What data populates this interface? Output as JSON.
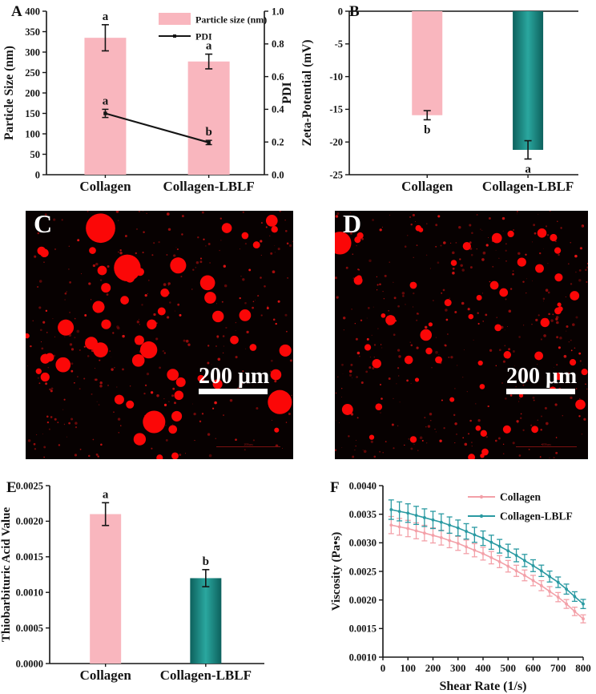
{
  "page": {
    "background": "#ffffff"
  },
  "panels": {
    "A": {
      "letter": "A"
    },
    "B": {
      "letter": "B"
    },
    "C": {
      "letter": "C",
      "scalebar_label": "200 μm",
      "embedded_scalebar_label": "200um"
    },
    "D": {
      "letter": "D",
      "scalebar_label": "200 μm",
      "embedded_scalebar_label": "200um"
    },
    "E": {
      "letter": "E"
    },
    "F": {
      "letter": "F"
    }
  },
  "colors": {
    "pink": "#f9b6be",
    "pink_line": "#f3a0a8",
    "teal_edge": "#0d615d",
    "teal_center": "#2aa79f",
    "teal_line": "#2a9aa2",
    "axis": "#151515",
    "droplet_red": "#fb0707",
    "micro_bg": "#070101"
  },
  "chart_data": [
    {
      "panel": "A",
      "type": "bar",
      "categories": [
        "Collagen",
        "Collagen-LBLF"
      ],
      "series": [
        {
          "name": "Particle size (nm)",
          "plot": "bar",
          "axis": "left",
          "values": [
            335,
            277
          ],
          "errors": [
            32,
            18
          ],
          "sig_labels": [
            "a",
            "a"
          ],
          "bar_colors": [
            "pink",
            "pink"
          ]
        },
        {
          "name": "PDI",
          "plot": "line",
          "axis": "right",
          "values": [
            0.375,
            0.197
          ],
          "errors": [
            0.025,
            0.013
          ],
          "sig_labels": [
            "a",
            "b"
          ]
        }
      ],
      "ylabel": "Particle Size (nm)",
      "ylabel_right": "PDI",
      "ylim": [
        0,
        400
      ],
      "ystep": 50,
      "ydecimals": 0,
      "ylim_right": [
        0.0,
        1.0
      ],
      "ystep_right": 0.2,
      "ydecimals_right": 1,
      "legend_position": "top-right"
    },
    {
      "panel": "B",
      "type": "bar",
      "categories": [
        "Collagen",
        "Collagen-LBLF"
      ],
      "series": [
        {
          "name": "Zeta-Potential",
          "plot": "bar",
          "axis": "left",
          "values": [
            -15.9,
            -21.2
          ],
          "errors": [
            0.7,
            1.4
          ],
          "sig_labels": [
            "b",
            "a"
          ],
          "bar_colors": [
            "pink",
            "teal"
          ]
        }
      ],
      "ylabel": "Zeta-Potential (mV)",
      "ylim": [
        -25,
        0
      ],
      "ystep": 5,
      "ydecimals": 0
    },
    {
      "panel": "E",
      "type": "bar",
      "categories": [
        "Collagen",
        "Collagen-LBLF"
      ],
      "series": [
        {
          "name": "Thiobarbituric Acid Value",
          "plot": "bar",
          "axis": "left",
          "values": [
            0.0021,
            0.0012
          ],
          "errors": [
            0.00016,
            0.00012
          ],
          "sig_labels": [
            "a",
            "b"
          ],
          "bar_colors": [
            "pink",
            "teal"
          ]
        }
      ],
      "ylabel": "Thiobarbituric Acid Value",
      "ylim": [
        0.0,
        0.0025
      ],
      "ystep": 0.0005,
      "ydecimals": 4
    },
    {
      "panel": "F",
      "type": "line",
      "x": [
        33,
        66,
        100,
        133,
        166,
        200,
        233,
        266,
        300,
        333,
        366,
        400,
        433,
        466,
        500,
        533,
        566,
        600,
        633,
        666,
        700,
        733,
        766,
        800
      ],
      "series": [
        {
          "name": "Collagen",
          "color": "pink_line",
          "values": [
            0.00331,
            0.00328,
            0.00325,
            0.00321,
            0.00317,
            0.00313,
            0.00309,
            0.00304,
            0.00299,
            0.00293,
            0.00287,
            0.00281,
            0.00274,
            0.00267,
            0.00259,
            0.00251,
            0.00243,
            0.00234,
            0.00225,
            0.00215,
            0.00205,
            0.00193,
            0.0018,
            0.00167
          ],
          "error_start": 0.00015,
          "error_end": 7e-05
        },
        {
          "name": "Collagen-LBLF",
          "color": "teal_line",
          "values": [
            0.00358,
            0.00355,
            0.00352,
            0.00348,
            0.00344,
            0.0034,
            0.00336,
            0.00331,
            0.00326,
            0.0032,
            0.00314,
            0.00308,
            0.00301,
            0.00294,
            0.00286,
            0.00278,
            0.00269,
            0.0026,
            0.00251,
            0.00241,
            0.00231,
            0.00219,
            0.00206,
            0.00193
          ],
          "error_start": 0.00017,
          "error_end": 8e-05
        }
      ],
      "xlabel": "Shear Rate (1/s)",
      "ylabel": "Viscosity (Pa•s)",
      "xlim": [
        0,
        800
      ],
      "xstep": 100,
      "ylim": [
        0.001,
        0.004
      ],
      "ystep": 0.0005,
      "ydecimals": 4,
      "legend_position": "top-right"
    }
  ],
  "micrograph_data": [
    {
      "panel": "C",
      "seed": 20240601,
      "large_droplets": [
        [
          0.28,
          0.07,
          0.055
        ],
        [
          0.92,
          0.04,
          0.022
        ],
        [
          0.82,
          0.1,
          0.013
        ],
        [
          0.07,
          0.17,
          0.016
        ],
        [
          0.25,
          0.16,
          0.013
        ],
        [
          0.38,
          0.23,
          0.05
        ],
        [
          0.57,
          0.22,
          0.03
        ],
        [
          0.3,
          0.31,
          0.018
        ],
        [
          0.68,
          0.29,
          0.028
        ],
        [
          0.69,
          0.35,
          0.022
        ],
        [
          0.52,
          0.33,
          0.016
        ],
        [
          0.37,
          0.36,
          0.016
        ],
        [
          0.15,
          0.47,
          0.03
        ],
        [
          0.28,
          0.56,
          0.028
        ],
        [
          0.46,
          0.56,
          0.032
        ],
        [
          0.09,
          0.59,
          0.016
        ],
        [
          0.14,
          0.62,
          0.028
        ],
        [
          0.55,
          0.66,
          0.022
        ],
        [
          0.58,
          0.69,
          0.018
        ],
        [
          0.78,
          0.52,
          0.016
        ],
        [
          0.85,
          0.55,
          0.013
        ],
        [
          0.35,
          0.76,
          0.018
        ],
        [
          0.39,
          0.78,
          0.015
        ],
        [
          0.48,
          0.85,
          0.042
        ],
        [
          0.55,
          0.88,
          0.016
        ],
        [
          0.95,
          0.77,
          0.045
        ]
      ],
      "medium_count": 30,
      "speck_count": 330,
      "medium_r": [
        3,
        8
      ]
    },
    {
      "panel": "D",
      "seed": 887766,
      "large_droplets": [
        [
          0.02,
          0.13,
          0.045
        ],
        [
          0.1,
          0.1,
          0.013
        ],
        [
          0.33,
          0.07,
          0.012
        ],
        [
          0.64,
          0.11,
          0.02
        ],
        [
          0.88,
          0.16,
          0.013
        ],
        [
          0.47,
          0.21,
          0.012
        ],
        [
          0.31,
          0.3,
          0.014
        ],
        [
          0.63,
          0.3,
          0.017
        ],
        [
          0.57,
          0.35,
          0.011
        ],
        [
          0.22,
          0.44,
          0.02
        ],
        [
          0.36,
          0.5,
          0.023
        ],
        [
          0.13,
          0.55,
          0.013
        ],
        [
          0.41,
          0.6,
          0.014
        ],
        [
          0.83,
          0.45,
          0.018
        ],
        [
          0.94,
          0.61,
          0.013
        ],
        [
          0.05,
          0.8,
          0.022
        ],
        [
          0.68,
          0.88,
          0.016
        ],
        [
          0.79,
          0.88,
          0.014
        ],
        [
          0.97,
          0.78,
          0.02
        ]
      ],
      "medium_count": 42,
      "speck_count": 380,
      "medium_r": [
        2.5,
        6
      ]
    }
  ]
}
